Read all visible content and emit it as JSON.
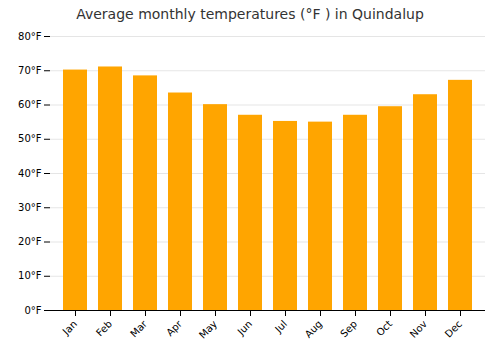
{
  "chart_data": {
    "type": "bar",
    "title": "Average monthly temperatures (°F ) in Quindalup",
    "categories": [
      "Jan",
      "Feb",
      "Mar",
      "Apr",
      "May",
      "Jun",
      "Jul",
      "Aug",
      "Sep",
      "Oct",
      "Nov",
      "Dec"
    ],
    "values": [
      70.2,
      71.1,
      68.5,
      63.5,
      60.1,
      57.0,
      55.2,
      55.0,
      57.0,
      59.5,
      63.0,
      67.2
    ],
    "color": "#FFA500",
    "ylim": [
      0,
      80
    ],
    "yticks": [
      {
        "value": 0,
        "label": "0°F"
      },
      {
        "value": 10,
        "label": "10°F"
      },
      {
        "value": 20,
        "label": "20°F"
      },
      {
        "value": 30,
        "label": "30°F"
      },
      {
        "value": 40,
        "label": "40°F"
      },
      {
        "value": 50,
        "label": "50°F"
      },
      {
        "value": 60,
        "label": "60°F"
      },
      {
        "value": 70,
        "label": "70°F"
      },
      {
        "value": 80,
        "label": "80°F"
      }
    ],
    "grid": true
  }
}
